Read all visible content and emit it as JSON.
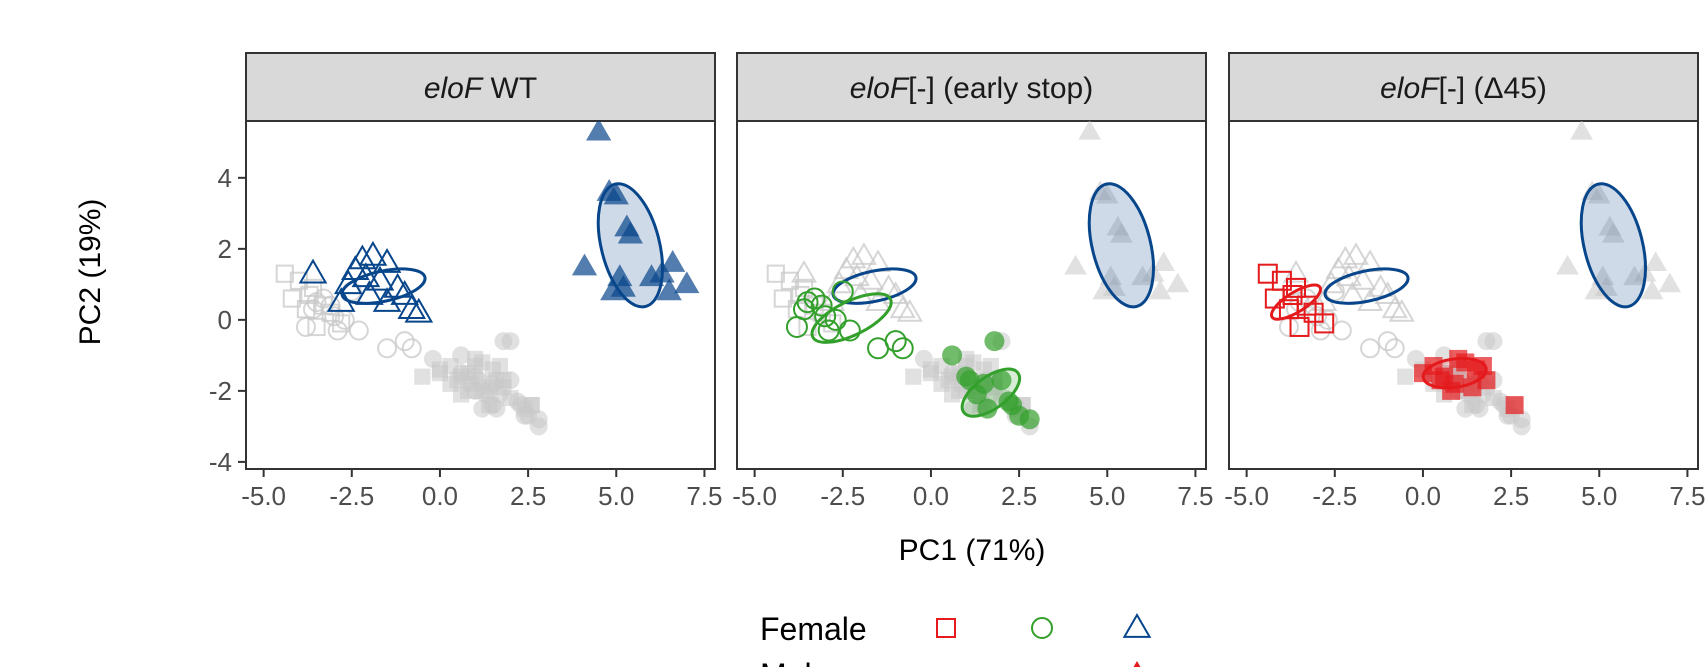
{
  "chart_data": {
    "type": "scatter",
    "subtype": "faceted PCA scatter with ellipses",
    "xlabel": "PC1 (71%)",
    "ylabel": "PC2 (19%)",
    "xlim": [
      -5.5,
      7.8
    ],
    "ylim": [
      -4.2,
      5.6
    ],
    "x_ticks": [
      -5.0,
      -2.5,
      0.0,
      2.5,
      5.0,
      7.5
    ],
    "x_tick_labels": [
      "-5.0",
      "-2.5",
      "0.0",
      "2.5",
      "5.0",
      "7.5"
    ],
    "y_ticks": [
      -4,
      -2,
      0,
      2,
      4
    ],
    "y_tick_labels": [
      "-4",
      "-2",
      "0",
      "2",
      "4"
    ],
    "colors": {
      "red": "#e41a1c",
      "green": "#33a02c",
      "blue": "#08468c",
      "grey": "#d9d9d9"
    },
    "panels": [
      {
        "title_italic": "eloF",
        "title_rest": " WT",
        "highlight": "wt"
      },
      {
        "title_italic": "eloF",
        "title_rest": "[-] (early stop)",
        "highlight": "early"
      },
      {
        "title_italic": "eloF",
        "title_rest": "[-] (Δ45)",
        "highlight": "d45"
      }
    ],
    "groups": {
      "wt_female": {
        "shape": "triangle",
        "filled": false,
        "color": "#08468c",
        "x": [
          -3.6,
          -2.6,
          -2.2,
          -1.9,
          -1.5,
          -2.8,
          -2.0,
          -1.7,
          -1.2,
          -0.8,
          -2.4,
          -1.0,
          -0.6,
          -1.5,
          -2.1
        ],
        "y": [
          1.3,
          1.0,
          1.7,
          1.8,
          1.6,
          0.5,
          0.7,
          1.1,
          0.9,
          0.3,
          1.4,
          0.7,
          0.2,
          0.5,
          1.2
        ],
        "ellipse": {
          "cx": -1.6,
          "cy": 0.95,
          "rx": 2.4,
          "ry": 0.85,
          "angle": -12
        }
      },
      "wt_male": {
        "shape": "triangle",
        "filled": true,
        "color": "#08468c",
        "x": [
          4.5,
          4.8,
          5.0,
          5.3,
          5.4,
          4.1,
          4.9,
          5.2,
          6.0,
          6.3,
          6.6,
          6.5,
          7.0,
          5.1
        ],
        "y": [
          5.3,
          3.6,
          3.5,
          2.6,
          2.4,
          1.5,
          0.8,
          0.9,
          1.2,
          1.3,
          1.6,
          0.8,
          1.0,
          1.2
        ],
        "ellipse": {
          "cx": 5.4,
          "cy": 2.1,
          "rx": 1.65,
          "ry": 3.55,
          "angle": -14
        }
      },
      "early_female": {
        "shape": "circle",
        "filled": false,
        "color": "#33a02c",
        "x": [
          -3.6,
          -3.3,
          -3.1,
          -2.5,
          -2.7,
          -3.0,
          -3.8,
          -2.3,
          -1.5,
          -1.0,
          -0.8,
          -2.9,
          -3.5
        ],
        "y": [
          0.3,
          0.6,
          0.4,
          0.8,
          0.0,
          0.1,
          -0.2,
          -0.3,
          -0.8,
          -0.6,
          -0.8,
          -0.3,
          0.5
        ],
        "ellipse": {
          "cx": -2.25,
          "cy": 0.05,
          "rx": 2.45,
          "ry": 0.95,
          "angle": -26
        }
      },
      "early_male": {
        "shape": "circle",
        "filled": true,
        "color": "#33a02c",
        "x": [
          0.6,
          1.0,
          1.5,
          2.0,
          2.2,
          1.3,
          1.8,
          2.5,
          2.8,
          1.6,
          1.1,
          2.3
        ],
        "y": [
          -1.0,
          -1.6,
          -1.8,
          -1.7,
          -2.3,
          -2.1,
          -0.6,
          -2.7,
          -2.8,
          -2.5,
          -1.7,
          -2.4
        ],
        "ellipse": {
          "cx": 1.7,
          "cy": -2.05,
          "rx": 1.9,
          "ry": 0.9,
          "angle": -36
        }
      },
      "d45_female": {
        "shape": "square",
        "filled": false,
        "color": "#e41a1c",
        "x": [
          -4.4,
          -4.0,
          -3.7,
          -3.3,
          -3.8,
          -3.5,
          -3.1,
          -2.8,
          -3.6,
          -4.2
        ],
        "y": [
          1.3,
          1.1,
          0.7,
          0.4,
          0.3,
          -0.2,
          0.2,
          -0.1,
          0.9,
          0.6
        ],
        "ellipse": {
          "cx": -3.6,
          "cy": 0.5,
          "rx": 1.6,
          "ry": 0.55,
          "angle": -32
        }
      },
      "d45_male": {
        "shape": "square",
        "filled": true,
        "color": "#e41a1c",
        "x": [
          0.0,
          0.3,
          0.6,
          0.9,
          1.2,
          1.5,
          1.8,
          0.8,
          1.0,
          1.4,
          2.6,
          0.5,
          1.7
        ],
        "y": [
          -1.5,
          -1.3,
          -1.6,
          -1.8,
          -1.2,
          -1.4,
          -1.7,
          -2.0,
          -1.1,
          -1.9,
          -2.4,
          -1.7,
          -1.3
        ],
        "ellipse": {
          "cx": 0.9,
          "cy": -1.5,
          "rx": 1.8,
          "ry": 0.8,
          "angle": -8
        }
      },
      "grey_male_squares": {
        "shape": "square",
        "filled": true,
        "color": "#d9d9d9",
        "x": [
          -0.5,
          0.0,
          0.3,
          0.8,
          1.2,
          1.6,
          2.0,
          2.4,
          1.0,
          0.6,
          1.8,
          1.4,
          2.6
        ],
        "y": [
          -1.6,
          -1.4,
          -1.8,
          -1.5,
          -2.0,
          -1.7,
          -2.2,
          -2.5,
          -1.3,
          -2.1,
          -1.9,
          -2.4,
          -2.4
        ],
        "ellipse": null
      },
      "grey_male_circles": {
        "shape": "circle",
        "filled": true,
        "color": "#d9d9d9",
        "x": [
          -0.2,
          0.6,
          1.0,
          1.5,
          2.0,
          2.4,
          1.2,
          2.8,
          1.7
        ],
        "y": [
          -1.1,
          -1.5,
          -2.0,
          -2.4,
          -0.6,
          -2.7,
          -2.5,
          -3.0,
          -2.1
        ],
        "ellipse": null
      }
    },
    "legend": {
      "position": "bottom",
      "rows": [
        {
          "label": "Female",
          "swatches": [
            {
              "shape": "square",
              "filled": false,
              "color": "#e41a1c"
            },
            {
              "shape": "circle",
              "filled": false,
              "color": "#33a02c"
            },
            {
              "shape": "triangle",
              "filled": false,
              "color": "#08468c"
            }
          ]
        },
        {
          "label": "Male",
          "swatches": [
            {
              "shape": "triangle",
              "filled": true,
              "color": "#e41a1c"
            }
          ]
        }
      ]
    }
  }
}
